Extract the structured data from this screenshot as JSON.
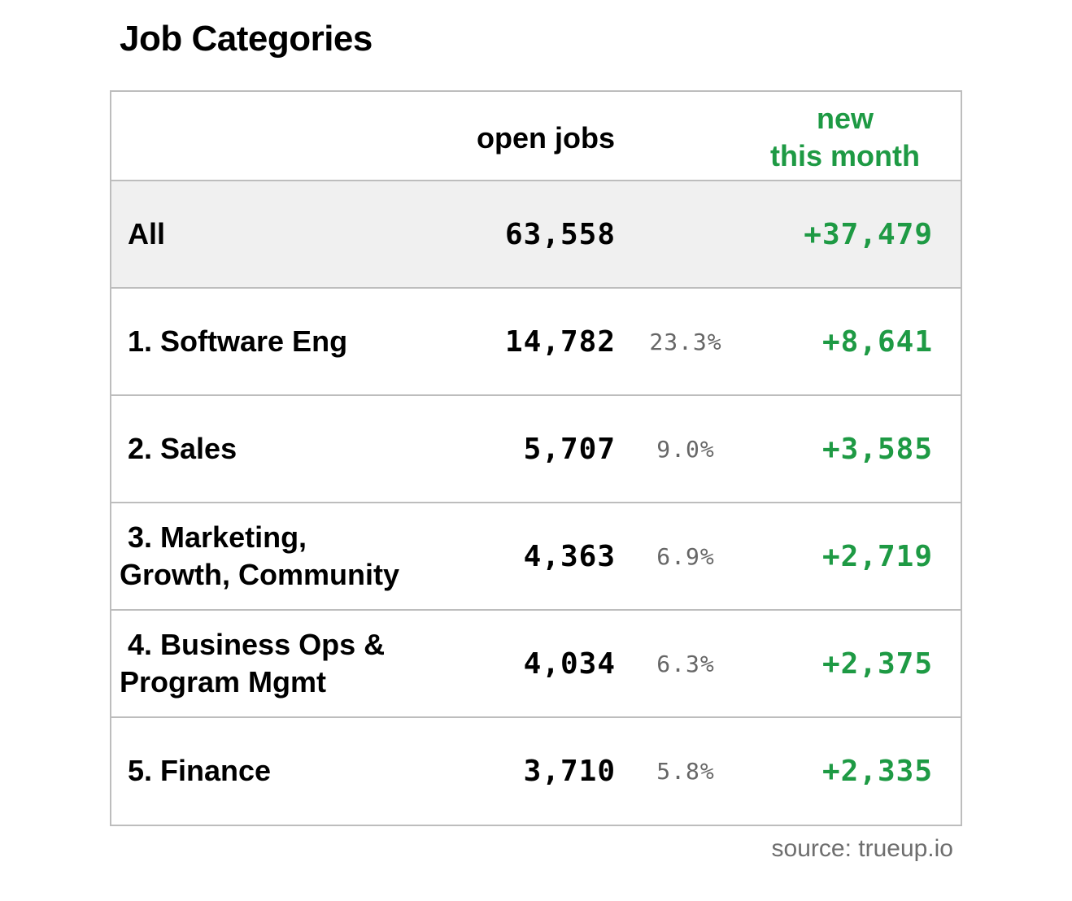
{
  "title": "Job Categories",
  "headers": {
    "open_jobs": "open jobs",
    "new_line1": "new",
    "new_line2": "this month"
  },
  "total": {
    "label": "All",
    "open_jobs": "63,558",
    "new_this_month": "+37,479"
  },
  "rows": [
    {
      "label": "1. Software Eng",
      "open_jobs": "14,782",
      "share": "23.3%",
      "new_this_month": "+8,641"
    },
    {
      "label": "2. Sales",
      "open_jobs": "5,707",
      "share": "9.0%",
      "new_this_month": "+3,585"
    },
    {
      "label_line1": "3. Marketing,",
      "label_line2": "Growth, Community",
      "open_jobs": "4,363",
      "share": "6.9%",
      "new_this_month": "+2,719"
    },
    {
      "label_line1": "4. Business Ops &",
      "label_line2": "Program Mgmt",
      "open_jobs": "4,034",
      "share": "6.3%",
      "new_this_month": "+2,375"
    },
    {
      "label": "5. Finance",
      "open_jobs": "3,710",
      "share": "5.8%",
      "new_this_month": "+2,335"
    }
  ],
  "source": "source: trueup.io",
  "colors": {
    "accent_green": "#1e9a44",
    "border": "#bdbdbd",
    "total_row_bg": "#f0f0f0",
    "muted_text": "#666666"
  },
  "chart_data": {
    "type": "table",
    "title": "Job Categories",
    "columns": [
      "",
      "open jobs",
      "",
      "new this month"
    ],
    "rows": [
      [
        "All",
        63558,
        null,
        37479
      ],
      [
        "1. Software Eng",
        14782,
        23.3,
        8641
      ],
      [
        "2. Sales",
        5707,
        9.0,
        3585
      ],
      [
        "3. Marketing, Growth, Community",
        4363,
        6.9,
        2719
      ],
      [
        "4. Business Ops & Program Mgmt",
        4034,
        6.3,
        2375
      ],
      [
        "5. Finance",
        3710,
        5.8,
        2335
      ]
    ]
  }
}
